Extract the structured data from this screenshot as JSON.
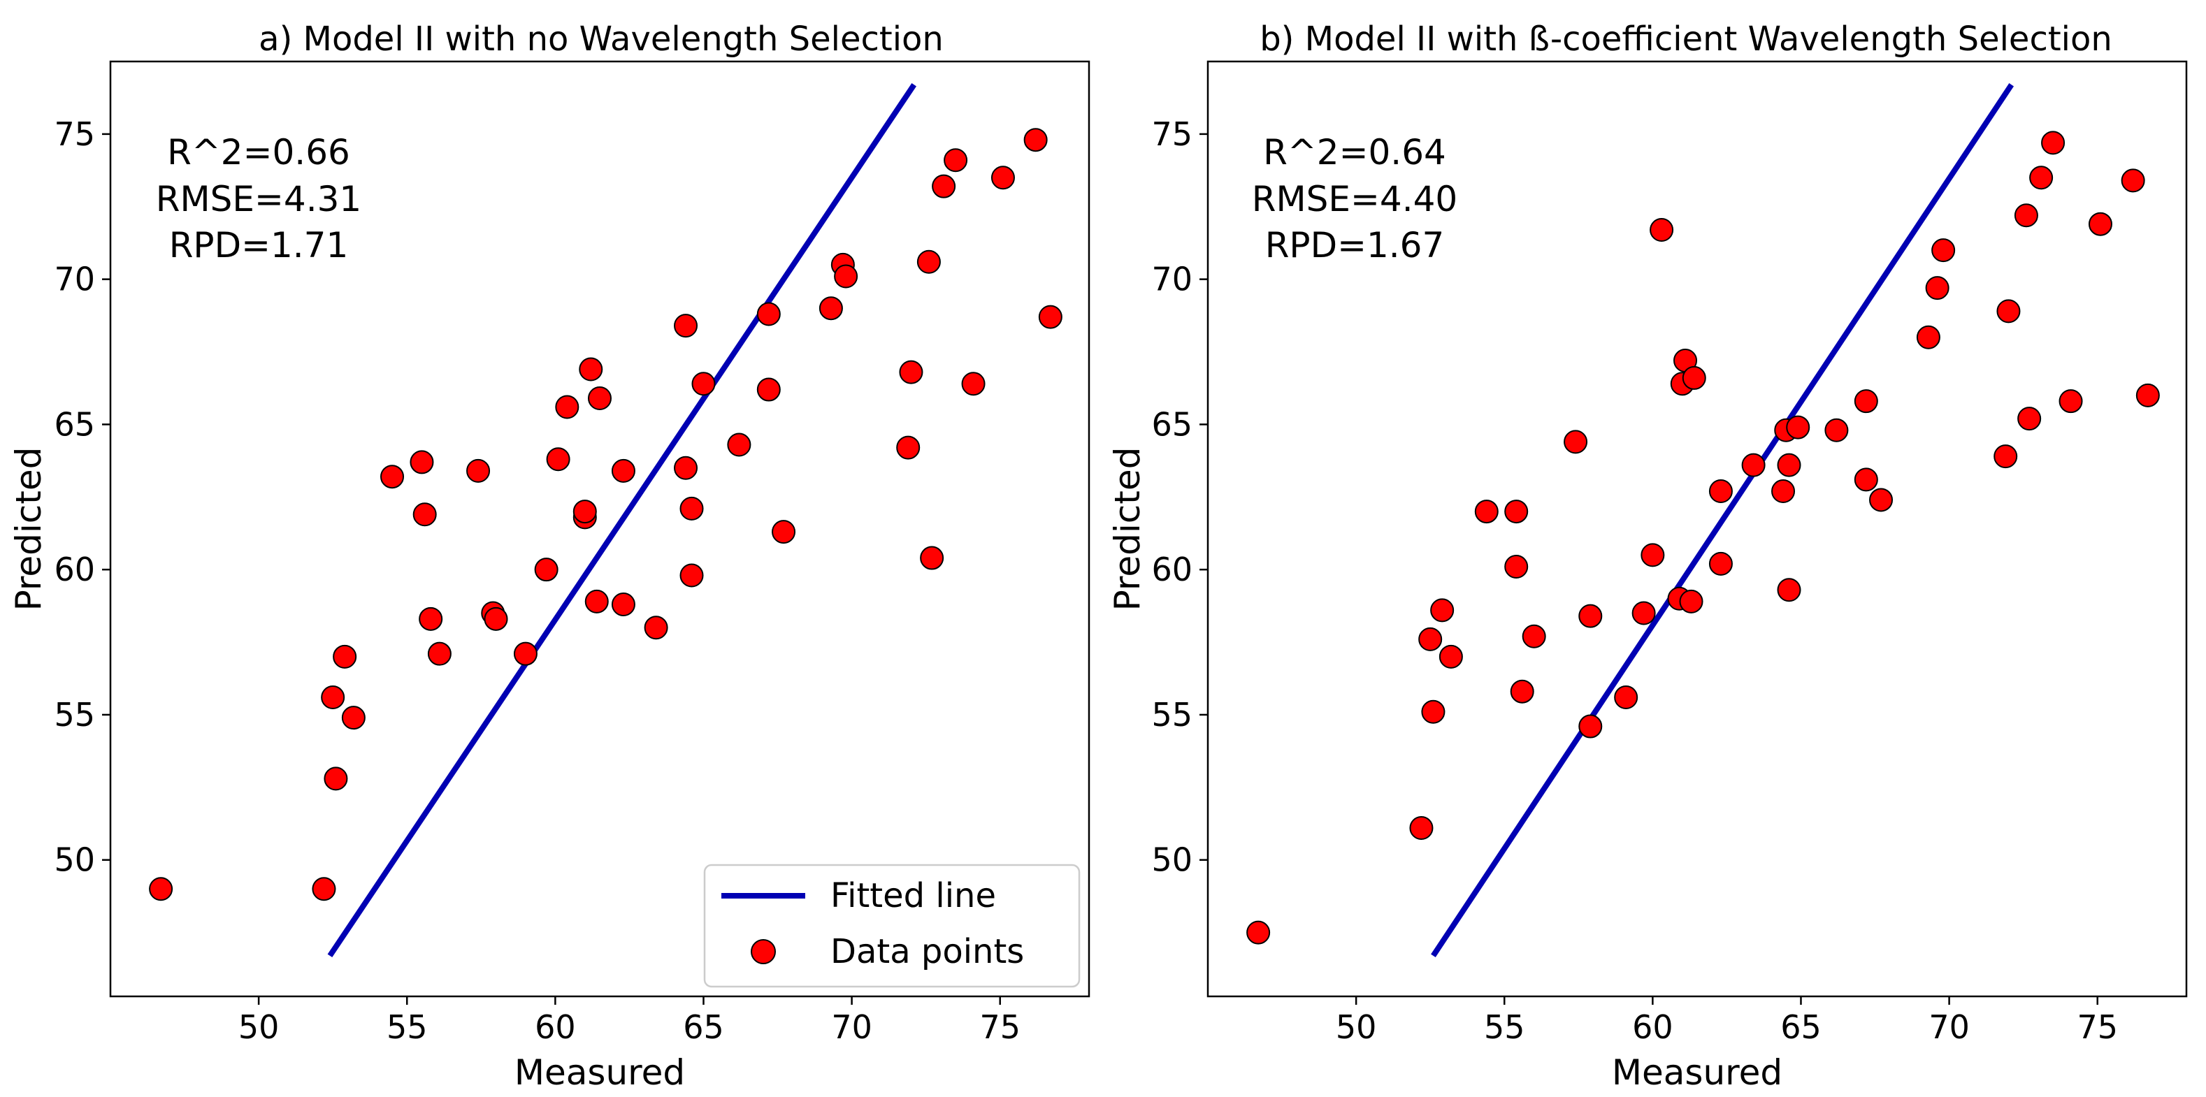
{
  "chart_data": [
    {
      "type": "scatter",
      "title": "a) Model II with no Wavelength Selection",
      "xlabel": "Measured",
      "ylabel": "Predicted",
      "xlim": [
        45.0,
        78.0
      ],
      "ylim": [
        45.3,
        77.5
      ],
      "xticks": [
        50,
        55,
        60,
        65,
        70,
        75
      ],
      "yticks": [
        50,
        55,
        60,
        65,
        70,
        75
      ],
      "stats": [
        "R^2=0.66",
        "RMSE=4.31",
        "RPD=1.71"
      ],
      "fit_line": {
        "name": "Fitted line",
        "color": "#0000b3",
        "x": [
          52.4,
          72.1
        ],
        "y": [
          46.7,
          76.7
        ]
      },
      "points_series": {
        "name": "Data points",
        "color": "#ff0000"
      },
      "legend": {
        "position": "bottom-right",
        "entries": [
          "Fitted line",
          "Data points"
        ]
      },
      "points": [
        [
          46.7,
          49.0
        ],
        [
          52.2,
          49.0
        ],
        [
          52.5,
          55.6
        ],
        [
          52.6,
          52.8
        ],
        [
          52.9,
          57.0
        ],
        [
          53.2,
          54.9
        ],
        [
          54.5,
          63.2
        ],
        [
          55.5,
          63.7
        ],
        [
          55.6,
          61.9
        ],
        [
          55.8,
          58.3
        ],
        [
          56.1,
          57.1
        ],
        [
          57.4,
          63.4
        ],
        [
          57.9,
          58.5
        ],
        [
          58.0,
          58.3
        ],
        [
          59.0,
          57.1
        ],
        [
          59.7,
          60.0
        ],
        [
          60.1,
          63.8
        ],
        [
          60.4,
          65.6
        ],
        [
          61.0,
          61.8
        ],
        [
          61.0,
          62.0
        ],
        [
          61.2,
          66.9
        ],
        [
          61.4,
          58.9
        ],
        [
          61.5,
          65.9
        ],
        [
          62.3,
          63.4
        ],
        [
          62.3,
          58.8
        ],
        [
          63.4,
          58.0
        ],
        [
          64.4,
          63.5
        ],
        [
          64.4,
          68.4
        ],
        [
          64.6,
          62.1
        ],
        [
          64.6,
          59.8
        ],
        [
          65.0,
          66.4
        ],
        [
          66.2,
          64.3
        ],
        [
          67.2,
          68.8
        ],
        [
          67.2,
          66.2
        ],
        [
          67.7,
          61.3
        ],
        [
          69.3,
          69.0
        ],
        [
          69.7,
          70.5
        ],
        [
          69.8,
          70.1
        ],
        [
          71.9,
          64.2
        ],
        [
          72.0,
          66.8
        ],
        [
          72.6,
          70.6
        ],
        [
          72.7,
          60.4
        ],
        [
          73.1,
          73.2
        ],
        [
          73.5,
          74.1
        ],
        [
          74.1,
          66.4
        ],
        [
          75.1,
          73.5
        ],
        [
          76.2,
          74.8
        ],
        [
          76.7,
          68.7
        ]
      ]
    },
    {
      "type": "scatter",
      "title": "b) Model II with ß-coefficient Wavelength Selection",
      "xlabel": "Measured",
      "ylabel": "Predicted",
      "xlim": [
        45.0,
        78.0
      ],
      "ylim": [
        45.3,
        77.5
      ],
      "xticks": [
        50,
        55,
        60,
        65,
        70,
        75
      ],
      "yticks": [
        50,
        55,
        60,
        65,
        70,
        75
      ],
      "stats": [
        "R^2=0.64",
        "RMSE=4.40",
        "RPD=1.67"
      ],
      "fit_line": {
        "name": "Fitted line",
        "color": "#0000b3",
        "x": [
          52.6,
          72.1
        ],
        "y": [
          46.7,
          76.7
        ]
      },
      "points_series": {
        "name": "Data points",
        "color": "#ff0000"
      },
      "points": [
        [
          46.7,
          47.5
        ],
        [
          52.2,
          51.1
        ],
        [
          52.5,
          57.6
        ],
        [
          52.6,
          55.1
        ],
        [
          52.9,
          58.6
        ],
        [
          53.2,
          57.0
        ],
        [
          54.4,
          62.0
        ],
        [
          55.4,
          62.0
        ],
        [
          55.4,
          60.1
        ],
        [
          55.6,
          55.8
        ],
        [
          56.0,
          57.7
        ],
        [
          57.4,
          64.4
        ],
        [
          57.9,
          54.6
        ],
        [
          57.9,
          58.4
        ],
        [
          59.1,
          55.6
        ],
        [
          59.7,
          58.5
        ],
        [
          60.0,
          60.5
        ],
        [
          60.3,
          71.7
        ],
        [
          60.9,
          59.0
        ],
        [
          61.0,
          66.4
        ],
        [
          61.1,
          67.2
        ],
        [
          61.3,
          58.9
        ],
        [
          61.4,
          66.6
        ],
        [
          62.3,
          62.7
        ],
        [
          62.3,
          60.2
        ],
        [
          63.4,
          63.6
        ],
        [
          64.4,
          62.7
        ],
        [
          64.5,
          64.8
        ],
        [
          64.6,
          59.3
        ],
        [
          64.6,
          63.6
        ],
        [
          64.9,
          64.9
        ],
        [
          66.2,
          64.8
        ],
        [
          67.2,
          63.1
        ],
        [
          67.2,
          65.8
        ],
        [
          67.7,
          62.4
        ],
        [
          69.3,
          68.0
        ],
        [
          69.6,
          69.7
        ],
        [
          69.8,
          71.0
        ],
        [
          71.9,
          63.9
        ],
        [
          72.0,
          68.9
        ],
        [
          72.6,
          72.2
        ],
        [
          72.7,
          65.2
        ],
        [
          73.1,
          73.5
        ],
        [
          73.5,
          74.7
        ],
        [
          74.1,
          65.8
        ],
        [
          75.1,
          71.9
        ],
        [
          76.2,
          73.4
        ],
        [
          76.7,
          66.0
        ]
      ]
    }
  ]
}
